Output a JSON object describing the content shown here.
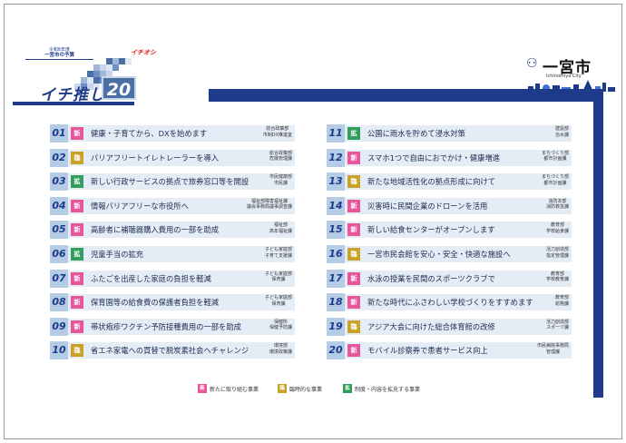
{
  "header": {
    "reiwa_small": "令和6年度",
    "reiwa_main": "一宮市の予算",
    "mascot_label": "イチオシ",
    "title_main": "イチ推し",
    "title_num": "20",
    "city_name": "一宮市",
    "city_en": "Ichinomiya City",
    "city_mark": "⚇"
  },
  "badges": {
    "new": "新",
    "temp": "臨",
    "exp": "拡"
  },
  "colors": {
    "navy": "#1e3a8a",
    "new": "#e9559a",
    "temp": "#c9a227",
    "exp": "#2e9e5b",
    "row_bg": "#e4ecf6",
    "num_bg": "#b5cce6"
  },
  "left_items": [
    {
      "num": "01",
      "type": "new",
      "label": "健康・子育てから、DXを始めます",
      "dept": "総合政策部\n市制DX推進室"
    },
    {
      "num": "02",
      "type": "temp",
      "label": "バリアフリートイレトレーラーを導入",
      "dept": "総合政策部\n危機管理課"
    },
    {
      "num": "03",
      "type": "exp",
      "label": "新しい行政サービスの拠点で旅券窓口等を開設",
      "dept": "市民健康部\n市民課"
    },
    {
      "num": "04",
      "type": "new",
      "label": "情報バリアフリーな市役所へ",
      "dept": "福祉部障害福祉課\n議会事務局議事調査課"
    },
    {
      "num": "05",
      "type": "new",
      "label": "高齢者に補聴器購入費用の一部を助成",
      "dept": "福祉部\n高年福祉課"
    },
    {
      "num": "06",
      "type": "exp",
      "label": "児童手当の拡充",
      "dept": "子ども家庭部\n子育て支援課"
    },
    {
      "num": "07",
      "type": "new",
      "label": "ふたごを出産した家庭の負担を軽減",
      "dept": "子ども家庭部\n保育課"
    },
    {
      "num": "08",
      "type": "new",
      "label": "保育園等の給食費の保護者負担を軽減",
      "dept": "子ども家庭部\n保育課"
    },
    {
      "num": "09",
      "type": "new",
      "label": "帯状疱疹ワクチン予防接種費用の一部を助成",
      "dept": "保健所\n保健予防課"
    },
    {
      "num": "10",
      "type": "temp",
      "label": "省エネ家電への買替で脱炭素社会へチャレンジ",
      "dept": "環境部\n環境政策課"
    }
  ],
  "right_items": [
    {
      "num": "11",
      "type": "exp",
      "label": "公園に雨水を貯めて浸水対策",
      "dept": "建設部\n治水課"
    },
    {
      "num": "12",
      "type": "new",
      "label": "スマホ1つで自由におでかけ・健康増進",
      "dept": "まちづくり部\n都市計画課"
    },
    {
      "num": "13",
      "type": "temp",
      "label": "新たな地域活性化の拠点形成に向けて",
      "dept": "まちづくり部\n都市計画課"
    },
    {
      "num": "14",
      "type": "new",
      "label": "災害時に民間企業のドローンを活用",
      "dept": "消防本部\n消防救急課"
    },
    {
      "num": "15",
      "type": "new",
      "label": "新しい給食センターがオープンします",
      "dept": "教育部\n学校給食課"
    },
    {
      "num": "16",
      "type": "temp",
      "label": "一宮市民会館を安心・安全・快適な施設へ",
      "dept": "活力創造部\n指定管理課"
    },
    {
      "num": "17",
      "type": "new",
      "label": "水泳の授業を民間のスポーツクラブで",
      "dept": "教育部\n学校教育課"
    },
    {
      "num": "18",
      "type": "new",
      "label": "新たな時代にふさわしい学校づくりをすすめます",
      "dept": "教育部\n総務課"
    },
    {
      "num": "19",
      "type": "temp",
      "label": "アジア大会に向けた総合体育館の改修",
      "dept": "活力創造部\nスポーツ課"
    },
    {
      "num": "20",
      "type": "new",
      "label": "モバイル診察券で患者サービス向上",
      "dept": "市民病院事務局\n管理課"
    }
  ],
  "legend": [
    {
      "type": "new",
      "text": "新たに取り組む事業"
    },
    {
      "type": "temp",
      "text": "臨時的な事業"
    },
    {
      "type": "exp",
      "text": "制度・内容を拡充する事業"
    }
  ]
}
